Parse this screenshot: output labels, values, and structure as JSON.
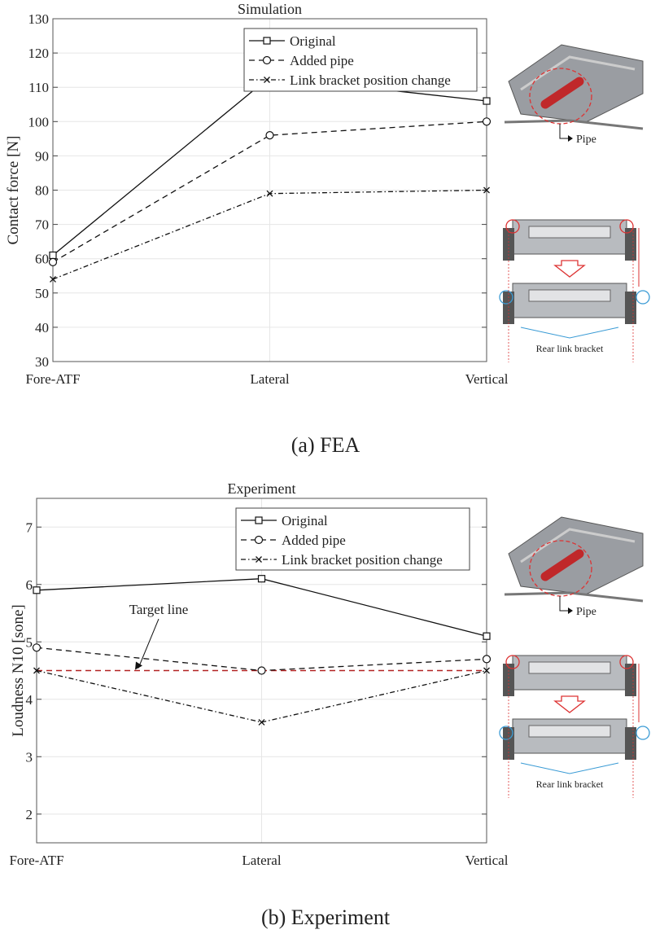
{
  "chart_data": [
    {
      "type": "line",
      "title": "Simulation",
      "caption": "(a) FEA",
      "xlabel": "",
      "ylabel": "Contact force [N]",
      "categories": [
        "Fore-ATF",
        "Lateral",
        "Vertical"
      ],
      "ylim": [
        30,
        130
      ],
      "yticks": [
        30,
        40,
        50,
        60,
        70,
        80,
        90,
        100,
        110,
        120,
        130
      ],
      "grid": true,
      "legend_position": "top-right",
      "series": [
        {
          "name": "Original",
          "values": [
            61,
            113,
            106
          ],
          "marker": "square",
          "dash": "solid"
        },
        {
          "name": "Added pipe",
          "values": [
            59,
            96,
            100
          ],
          "marker": "circle",
          "dash": "dashed"
        },
        {
          "name": "Link bracket position change",
          "values": [
            54,
            79,
            80
          ],
          "marker": "x",
          "dash": "dashdot"
        }
      ],
      "illustration_labels": {
        "pipe": "Pipe",
        "bracket": "Rear link bracket"
      }
    },
    {
      "type": "line",
      "title": "Experiment",
      "caption": "(b) Experiment",
      "xlabel": "",
      "ylabel": "Loudness N10 [sone]",
      "categories": [
        "Fore-ATF",
        "Lateral",
        "Vertical"
      ],
      "ylim": [
        1.5,
        7.5
      ],
      "yticks": [
        2,
        3,
        4,
        5,
        6,
        7
      ],
      "grid": true,
      "legend_position": "top-right",
      "series": [
        {
          "name": "Original",
          "values": [
            5.9,
            6.1,
            5.1
          ],
          "marker": "square",
          "dash": "solid"
        },
        {
          "name": "Added pipe",
          "values": [
            4.9,
            4.5,
            4.7
          ],
          "marker": "circle",
          "dash": "dashed"
        },
        {
          "name": "Link bracket position change",
          "values": [
            4.5,
            3.6,
            4.5
          ],
          "marker": "x",
          "dash": "dashdot"
        }
      ],
      "target_line": {
        "label": "Target line",
        "value": 4.5,
        "color": "#b22222"
      },
      "illustration_labels": {
        "pipe": "Pipe",
        "bracket": "Rear link bracket"
      }
    }
  ]
}
